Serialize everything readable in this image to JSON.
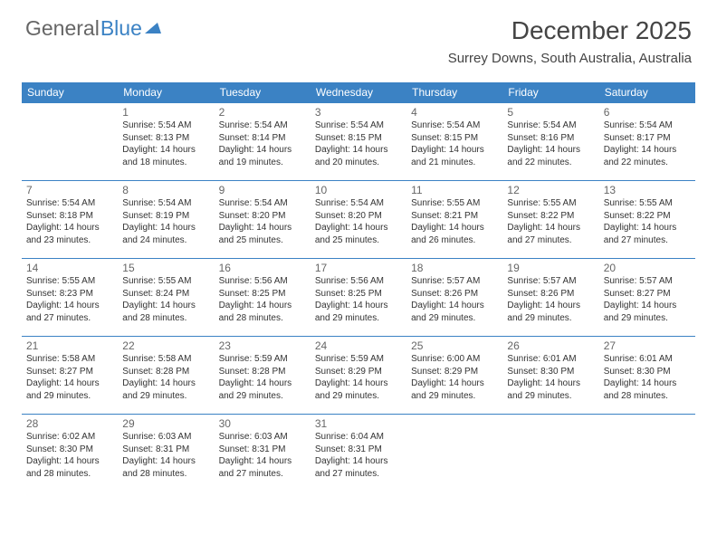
{
  "logo": {
    "text_general": "General",
    "text_blue": "Blue"
  },
  "title": "December 2025",
  "location": "Surrey Downs, South Australia, Australia",
  "colors": {
    "accent": "#3b82c4",
    "text": "#333333",
    "header_text": "#ffffff",
    "background": "#ffffff"
  },
  "day_headers": [
    "Sunday",
    "Monday",
    "Tuesday",
    "Wednesday",
    "Thursday",
    "Friday",
    "Saturday"
  ],
  "weeks": [
    [
      null,
      {
        "n": "1",
        "sr": "5:54 AM",
        "ss": "8:13 PM",
        "dl": "14 hours and 18 minutes."
      },
      {
        "n": "2",
        "sr": "5:54 AM",
        "ss": "8:14 PM",
        "dl": "14 hours and 19 minutes."
      },
      {
        "n": "3",
        "sr": "5:54 AM",
        "ss": "8:15 PM",
        "dl": "14 hours and 20 minutes."
      },
      {
        "n": "4",
        "sr": "5:54 AM",
        "ss": "8:15 PM",
        "dl": "14 hours and 21 minutes."
      },
      {
        "n": "5",
        "sr": "5:54 AM",
        "ss": "8:16 PM",
        "dl": "14 hours and 22 minutes."
      },
      {
        "n": "6",
        "sr": "5:54 AM",
        "ss": "8:17 PM",
        "dl": "14 hours and 22 minutes."
      }
    ],
    [
      {
        "n": "7",
        "sr": "5:54 AM",
        "ss": "8:18 PM",
        "dl": "14 hours and 23 minutes."
      },
      {
        "n": "8",
        "sr": "5:54 AM",
        "ss": "8:19 PM",
        "dl": "14 hours and 24 minutes."
      },
      {
        "n": "9",
        "sr": "5:54 AM",
        "ss": "8:20 PM",
        "dl": "14 hours and 25 minutes."
      },
      {
        "n": "10",
        "sr": "5:54 AM",
        "ss": "8:20 PM",
        "dl": "14 hours and 25 minutes."
      },
      {
        "n": "11",
        "sr": "5:55 AM",
        "ss": "8:21 PM",
        "dl": "14 hours and 26 minutes."
      },
      {
        "n": "12",
        "sr": "5:55 AM",
        "ss": "8:22 PM",
        "dl": "14 hours and 27 minutes."
      },
      {
        "n": "13",
        "sr": "5:55 AM",
        "ss": "8:22 PM",
        "dl": "14 hours and 27 minutes."
      }
    ],
    [
      {
        "n": "14",
        "sr": "5:55 AM",
        "ss": "8:23 PM",
        "dl": "14 hours and 27 minutes."
      },
      {
        "n": "15",
        "sr": "5:55 AM",
        "ss": "8:24 PM",
        "dl": "14 hours and 28 minutes."
      },
      {
        "n": "16",
        "sr": "5:56 AM",
        "ss": "8:25 PM",
        "dl": "14 hours and 28 minutes."
      },
      {
        "n": "17",
        "sr": "5:56 AM",
        "ss": "8:25 PM",
        "dl": "14 hours and 29 minutes."
      },
      {
        "n": "18",
        "sr": "5:57 AM",
        "ss": "8:26 PM",
        "dl": "14 hours and 29 minutes."
      },
      {
        "n": "19",
        "sr": "5:57 AM",
        "ss": "8:26 PM",
        "dl": "14 hours and 29 minutes."
      },
      {
        "n": "20",
        "sr": "5:57 AM",
        "ss": "8:27 PM",
        "dl": "14 hours and 29 minutes."
      }
    ],
    [
      {
        "n": "21",
        "sr": "5:58 AM",
        "ss": "8:27 PM",
        "dl": "14 hours and 29 minutes."
      },
      {
        "n": "22",
        "sr": "5:58 AM",
        "ss": "8:28 PM",
        "dl": "14 hours and 29 minutes."
      },
      {
        "n": "23",
        "sr": "5:59 AM",
        "ss": "8:28 PM",
        "dl": "14 hours and 29 minutes."
      },
      {
        "n": "24",
        "sr": "5:59 AM",
        "ss": "8:29 PM",
        "dl": "14 hours and 29 minutes."
      },
      {
        "n": "25",
        "sr": "6:00 AM",
        "ss": "8:29 PM",
        "dl": "14 hours and 29 minutes."
      },
      {
        "n": "26",
        "sr": "6:01 AM",
        "ss": "8:30 PM",
        "dl": "14 hours and 29 minutes."
      },
      {
        "n": "27",
        "sr": "6:01 AM",
        "ss": "8:30 PM",
        "dl": "14 hours and 28 minutes."
      }
    ],
    [
      {
        "n": "28",
        "sr": "6:02 AM",
        "ss": "8:30 PM",
        "dl": "14 hours and 28 minutes."
      },
      {
        "n": "29",
        "sr": "6:03 AM",
        "ss": "8:31 PM",
        "dl": "14 hours and 28 minutes."
      },
      {
        "n": "30",
        "sr": "6:03 AM",
        "ss": "8:31 PM",
        "dl": "14 hours and 27 minutes."
      },
      {
        "n": "31",
        "sr": "6:04 AM",
        "ss": "8:31 PM",
        "dl": "14 hours and 27 minutes."
      },
      null,
      null,
      null
    ]
  ],
  "labels": {
    "sunrise": "Sunrise:",
    "sunset": "Sunset:",
    "daylight": "Daylight:"
  }
}
